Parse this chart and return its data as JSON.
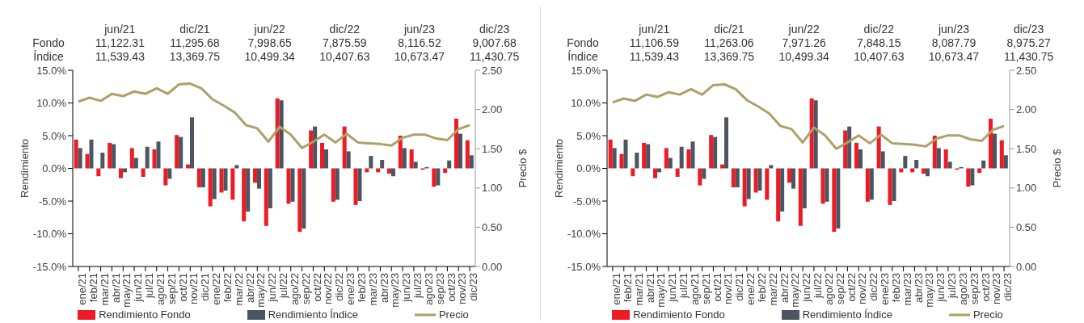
{
  "chart_data": [
    {
      "type": "bar",
      "categories": [
        "ene/21",
        "feb/21",
        "mar/21",
        "abr/21",
        "may/21",
        "jun/21",
        "jul/21",
        "ago/21",
        "sep/21",
        "oct/21",
        "nov/21",
        "dic/21",
        "ene/22",
        "feb/22",
        "mar/22",
        "abr/22",
        "may/22",
        "jun/22",
        "jul/22",
        "ago/22",
        "sep/22",
        "oct/22",
        "nov/22",
        "dic/22",
        "ene/23",
        "feb/23",
        "mar/23",
        "abr/23",
        "may/23",
        "jun/23",
        "jul/23",
        "ago/23",
        "sep/23",
        "oct/23",
        "nov/23",
        "dic/23"
      ],
      "series": [
        {
          "name": "Rendimiento Fondo",
          "color": "#ed1c24",
          "values": [
            4.4,
            2.2,
            -1.2,
            3.9,
            -1.5,
            3.1,
            -1.3,
            2.9,
            -2.6,
            5.1,
            0.6,
            -2.9,
            -5.8,
            -3.7,
            -4.8,
            -8.1,
            -2.2,
            -8.8,
            10.7,
            -5.4,
            -9.7,
            5.8,
            3.9,
            -5.1,
            6.4,
            -5.6,
            -0.6,
            -0.6,
            -0.8,
            5.0,
            2.9,
            -0.2,
            -2.8,
            -0.7,
            7.6,
            4.3
          ]
        },
        {
          "name": "Rendimiento Índice",
          "color": "#4d5562",
          "values": [
            3.1,
            4.4,
            2.4,
            3.7,
            -0.6,
            1.6,
            3.3,
            4.1,
            -1.6,
            4.8,
            7.8,
            -2.9,
            -4.7,
            -3.4,
            0.5,
            -6.6,
            -3.1,
            -6.1,
            10.4,
            -5.1,
            -9.2,
            6.4,
            2.9,
            -4.8,
            2.6,
            -5.0,
            1.9,
            1.3,
            -1.2,
            3.1,
            1.0,
            0.2,
            -2.6,
            1.2,
            5.3,
            2.0
          ]
        },
        {
          "name": "Precio",
          "type": "line",
          "axis": "y2",
          "color": "#ada069",
          "values": [
            2.1,
            2.15,
            2.11,
            2.2,
            2.17,
            2.23,
            2.2,
            2.27,
            2.2,
            2.32,
            2.33,
            2.27,
            2.13,
            2.05,
            1.96,
            1.8,
            1.76,
            1.59,
            1.78,
            1.68,
            1.51,
            1.59,
            1.68,
            1.58,
            1.69,
            1.58,
            1.57,
            1.56,
            1.54,
            1.64,
            1.68,
            1.68,
            1.63,
            1.61,
            1.75,
            1.8
          ]
        }
      ],
      "ylabel": "Rendimiento",
      "y2label": "Precio $",
      "ylim": [
        -15,
        15
      ],
      "yticks": [
        {
          "value": -15,
          "label": "-15.0%"
        },
        {
          "value": -10,
          "label": "-10.0%"
        },
        {
          "value": -5,
          "label": "-5.0%"
        },
        {
          "value": 0,
          "label": "0.0%"
        },
        {
          "value": 5,
          "label": "5.0%"
        },
        {
          "value": 10,
          "label": "10.0%"
        },
        {
          "value": 15,
          "label": "15.0%"
        }
      ],
      "y2lim": [
        0,
        2.5
      ],
      "y2ticks": [
        {
          "value": 0,
          "label": "0.00"
        },
        {
          "value": 0.5,
          "label": "0.50"
        },
        {
          "value": 1,
          "label": "1.00"
        },
        {
          "value": 1.5,
          "label": "1.50"
        },
        {
          "value": 2,
          "label": "2.00"
        },
        {
          "value": 2.5,
          "label": "2.50"
        }
      ],
      "legend": "bottom",
      "annotations": [
        "jun/21",
        "dic/21",
        "jun/22",
        "dic/22",
        "jun/23",
        "dic/23",
        "Fondo",
        "11,122.31",
        "11,295.68",
        "7,998.65",
        "7,875.59",
        "8,116.52",
        "9,007.68",
        "Índice",
        "11,539.43",
        "13,369.75",
        "10,499.34",
        "10,407.63",
        "10,673.47",
        "11,430.75"
      ]
    },
    {
      "type": "bar",
      "categories": [
        "ene/21",
        "feb/21",
        "mar/21",
        "abr/21",
        "may/21",
        "jun/21",
        "jul/21",
        "ago/21",
        "sep/21",
        "oct/21",
        "nov/21",
        "dic/21",
        "ene/22",
        "feb/22",
        "mar/22",
        "abr/22",
        "may/22",
        "jun/22",
        "jul/22",
        "ago/22",
        "sep/22",
        "oct/22",
        "nov/22",
        "dic/22",
        "ene/23",
        "feb/23",
        "mar/23",
        "abr/23",
        "may/23",
        "jun/23",
        "jul/23",
        "ago/23",
        "sep/23",
        "oct/23",
        "nov/23",
        "dic/23"
      ],
      "series": [
        {
          "name": "Rendimiento Fondo",
          "color": "#ed1c24",
          "values": [
            4.4,
            2.2,
            -1.2,
            3.9,
            -1.5,
            3.1,
            -1.3,
            2.9,
            -2.6,
            5.1,
            0.6,
            -2.9,
            -5.8,
            -3.7,
            -4.8,
            -8.1,
            -2.2,
            -8.8,
            10.7,
            -5.4,
            -9.7,
            5.8,
            3.9,
            -5.1,
            6.4,
            -5.6,
            -0.6,
            -0.6,
            -0.8,
            5.0,
            2.9,
            -0.2,
            -2.8,
            -0.7,
            7.6,
            4.3
          ]
        },
        {
          "name": "Rendimiento Índice",
          "color": "#4d5562",
          "values": [
            3.1,
            4.4,
            2.4,
            3.7,
            -0.6,
            1.6,
            3.3,
            4.1,
            -1.6,
            4.8,
            7.8,
            -2.9,
            -4.7,
            -3.4,
            0.5,
            -6.6,
            -3.1,
            -6.1,
            10.4,
            -5.1,
            -9.2,
            6.4,
            2.9,
            -4.8,
            2.6,
            -5.0,
            1.9,
            1.3,
            -1.2,
            3.1,
            1.0,
            0.2,
            -2.6,
            1.2,
            5.3,
            2.0
          ]
        },
        {
          "name": "Precio",
          "type": "line",
          "axis": "y2",
          "color": "#ada069",
          "values": [
            2.09,
            2.14,
            2.11,
            2.19,
            2.16,
            2.22,
            2.19,
            2.26,
            2.19,
            2.31,
            2.32,
            2.26,
            2.12,
            2.04,
            1.95,
            1.79,
            1.75,
            1.58,
            1.77,
            1.67,
            1.5,
            1.58,
            1.67,
            1.57,
            1.68,
            1.57,
            1.56,
            1.55,
            1.53,
            1.63,
            1.67,
            1.67,
            1.62,
            1.6,
            1.74,
            1.79
          ]
        }
      ],
      "ylabel": "Rendimiento",
      "y2label": "Precio $",
      "ylim": [
        -15,
        15
      ],
      "yticks": [
        {
          "value": -15,
          "label": "-15.0%"
        },
        {
          "value": -10,
          "label": "-10.0%"
        },
        {
          "value": -5,
          "label": "-5.0%"
        },
        {
          "value": 0,
          "label": "0.0%"
        },
        {
          "value": 5,
          "label": "5.0%"
        },
        {
          "value": 10,
          "label": "10.0%"
        },
        {
          "value": 15,
          "label": "15.0%"
        }
      ],
      "y2lim": [
        0,
        2.5
      ],
      "y2ticks": [
        {
          "value": 0,
          "label": "0.00"
        },
        {
          "value": 0.5,
          "label": "0.50"
        },
        {
          "value": 1,
          "label": "1.00"
        },
        {
          "value": 1.5,
          "label": "1.50"
        },
        {
          "value": 2,
          "label": "2.00"
        },
        {
          "value": 2.5,
          "label": "2.50"
        }
      ],
      "legend": "bottom",
      "annotations": [
        "jun/21",
        "dic/21",
        "jun/22",
        "dic/22",
        "jun/23",
        "dic/23",
        "Fondo",
        "11,106.59",
        "11,263.06",
        "7,971.26",
        "7,848.15",
        "8,087.79",
        "8,975.27",
        "Índice",
        "11,539.43",
        "13,369.75",
        "10,499.34",
        "10,407.63",
        "10,673.47",
        "11,430.75"
      ]
    }
  ]
}
